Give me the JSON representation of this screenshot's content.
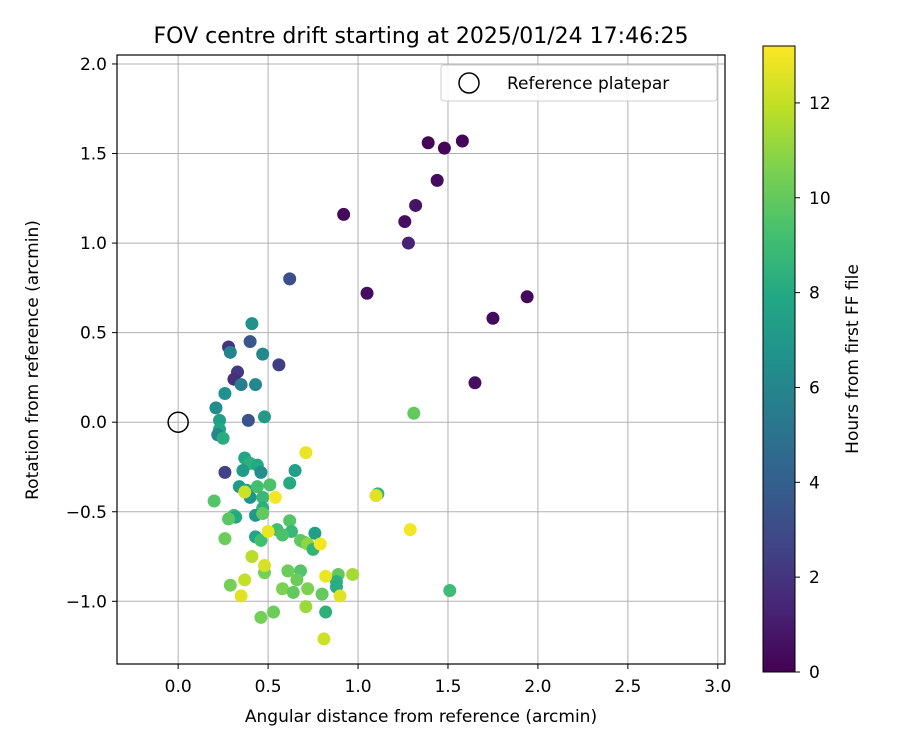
{
  "chart_data": {
    "type": "scatter",
    "title": "FOV centre drift starting at 2025/01/24 17:46:25",
    "xlabel": "Angular distance from reference (arcmin)",
    "ylabel": "Rotation from reference (arcmin)",
    "xlim": [
      -0.34,
      3.04
    ],
    "ylim": [
      -1.35,
      2.05
    ],
    "xticks": [
      0.0,
      0.5,
      1.0,
      1.5,
      2.0,
      2.5,
      3.0
    ],
    "xtick_labels": [
      "0.0",
      "0.5",
      "1.0",
      "1.5",
      "2.0",
      "2.5",
      "3.0"
    ],
    "yticks": [
      -1.0,
      -0.5,
      0.0,
      0.5,
      1.0,
      1.5,
      2.0
    ],
    "ytick_labels": [
      "−1.0",
      "−0.5",
      "0.0",
      "0.5",
      "1.0",
      "1.5",
      "2.0"
    ],
    "grid": true,
    "legend": {
      "placement": "top-right",
      "entries": [
        "Reference platepar"
      ]
    },
    "reference_point": {
      "x": 0.0,
      "y": 0.0,
      "label": "Reference platepar"
    },
    "colorbar": {
      "label": "Hours from first FF file",
      "colormap": "viridis",
      "min": 0,
      "max": 13.2,
      "ticks": [
        0,
        2,
        4,
        6,
        8,
        10,
        12
      ],
      "tick_labels": [
        "0",
        "2",
        "4",
        "6",
        "8",
        "10",
        "12"
      ]
    },
    "points": [
      {
        "x": 1.39,
        "y": 1.56,
        "hours": 0.2
      },
      {
        "x": 1.48,
        "y": 1.53,
        "hours": 0.2
      },
      {
        "x": 1.58,
        "y": 1.57,
        "hours": 0.2
      },
      {
        "x": 1.44,
        "y": 1.35,
        "hours": 0.4
      },
      {
        "x": 0.92,
        "y": 1.16,
        "hours": 0.3
      },
      {
        "x": 1.32,
        "y": 1.21,
        "hours": 0.7
      },
      {
        "x": 1.26,
        "y": 1.12,
        "hours": 0.5
      },
      {
        "x": 1.28,
        "y": 1.0,
        "hours": 1.3
      },
      {
        "x": 1.05,
        "y": 0.72,
        "hours": 0.5
      },
      {
        "x": 1.94,
        "y": 0.7,
        "hours": 0.3
      },
      {
        "x": 1.75,
        "y": 0.58,
        "hours": 0.4
      },
      {
        "x": 1.65,
        "y": 0.22,
        "hours": 0.5
      },
      {
        "x": 0.62,
        "y": 0.8,
        "hours": 3.2
      },
      {
        "x": 0.56,
        "y": 0.32,
        "hours": 2.4
      },
      {
        "x": 0.4,
        "y": 0.45,
        "hours": 3.6
      },
      {
        "x": 0.28,
        "y": 0.42,
        "hours": 2.0
      },
      {
        "x": 0.33,
        "y": 0.28,
        "hours": 2.2
      },
      {
        "x": 0.31,
        "y": 0.24,
        "hours": 1.8
      },
      {
        "x": 0.39,
        "y": 0.01,
        "hours": 3.3
      },
      {
        "x": 0.26,
        "y": -0.28,
        "hours": 2.6
      },
      {
        "x": 0.41,
        "y": 0.55,
        "hours": 6.6
      },
      {
        "x": 0.29,
        "y": 0.39,
        "hours": 5.8
      },
      {
        "x": 0.35,
        "y": 0.21,
        "hours": 5.6
      },
      {
        "x": 0.43,
        "y": 0.21,
        "hours": 6.0
      },
      {
        "x": 0.47,
        "y": 0.38,
        "hours": 6.2
      },
      {
        "x": 0.26,
        "y": 0.16,
        "hours": 6.6
      },
      {
        "x": 0.21,
        "y": 0.08,
        "hours": 6.4
      },
      {
        "x": 0.23,
        "y": 0.01,
        "hours": 7.4
      },
      {
        "x": 0.23,
        "y": -0.04,
        "hours": 7.8
      },
      {
        "x": 0.22,
        "y": -0.07,
        "hours": 5.9
      },
      {
        "x": 0.25,
        "y": -0.09,
        "hours": 8.2
      },
      {
        "x": 0.48,
        "y": 0.03,
        "hours": 7.2
      },
      {
        "x": 0.37,
        "y": -0.2,
        "hours": 7.8
      },
      {
        "x": 0.4,
        "y": -0.23,
        "hours": 8.4
      },
      {
        "x": 0.44,
        "y": -0.24,
        "hours": 8.0
      },
      {
        "x": 0.36,
        "y": -0.27,
        "hours": 7.2
      },
      {
        "x": 0.46,
        "y": -0.28,
        "hours": 6.5
      },
      {
        "x": 0.65,
        "y": -0.27,
        "hours": 7.4
      },
      {
        "x": 0.62,
        "y": -0.34,
        "hours": 8.0
      },
      {
        "x": 0.34,
        "y": -0.36,
        "hours": 7.2
      },
      {
        "x": 0.38,
        "y": -0.38,
        "hours": 7.6
      },
      {
        "x": 0.44,
        "y": -0.36,
        "hours": 9.2
      },
      {
        "x": 0.51,
        "y": -0.35,
        "hours": 9.4
      },
      {
        "x": 0.4,
        "y": -0.42,
        "hours": 6.8
      },
      {
        "x": 0.47,
        "y": -0.42,
        "hours": 8.8
      },
      {
        "x": 0.2,
        "y": -0.44,
        "hours": 9.6
      },
      {
        "x": 0.47,
        "y": -0.48,
        "hours": 8.4
      },
      {
        "x": 0.31,
        "y": -0.52,
        "hours": 9.0
      },
      {
        "x": 0.32,
        "y": -0.53,
        "hours": 8.0
      },
      {
        "x": 0.43,
        "y": -0.52,
        "hours": 7.0
      },
      {
        "x": 0.47,
        "y": -0.51,
        "hours": 10.0
      },
      {
        "x": 0.28,
        "y": -0.54,
        "hours": 9.8
      },
      {
        "x": 0.62,
        "y": -0.55,
        "hours": 9.6
      },
      {
        "x": 0.55,
        "y": -0.6,
        "hours": 9.2
      },
      {
        "x": 0.63,
        "y": -0.61,
        "hours": 8.8
      },
      {
        "x": 0.58,
        "y": -0.63,
        "hours": 9.4
      },
      {
        "x": 0.43,
        "y": -0.64,
        "hours": 7.8
      },
      {
        "x": 0.26,
        "y": -0.65,
        "hours": 10.2
      },
      {
        "x": 0.46,
        "y": -0.66,
        "hours": 9.2
      },
      {
        "x": 0.68,
        "y": -0.66,
        "hours": 10.0
      },
      {
        "x": 0.7,
        "y": -0.67,
        "hours": 9.8
      },
      {
        "x": 0.72,
        "y": -0.68,
        "hours": 11.0
      },
      {
        "x": 0.76,
        "y": -0.62,
        "hours": 7.4
      },
      {
        "x": 0.75,
        "y": -0.71,
        "hours": 8.6
      },
      {
        "x": 1.11,
        "y": -0.4,
        "hours": 8.6
      },
      {
        "x": 1.31,
        "y": 0.05,
        "hours": 10.0
      },
      {
        "x": 1.51,
        "y": -0.94,
        "hours": 9.0
      },
      {
        "x": 0.61,
        "y": -0.83,
        "hours": 10.2
      },
      {
        "x": 0.68,
        "y": -0.83,
        "hours": 9.6
      },
      {
        "x": 0.48,
        "y": -0.84,
        "hours": 10.4
      },
      {
        "x": 0.66,
        "y": -0.88,
        "hours": 10.2
      },
      {
        "x": 0.89,
        "y": -0.85,
        "hours": 10.0
      },
      {
        "x": 0.88,
        "y": -0.89,
        "hours": 8.4
      },
      {
        "x": 0.58,
        "y": -0.93,
        "hours": 10.6
      },
      {
        "x": 0.64,
        "y": -0.95,
        "hours": 10.0
      },
      {
        "x": 0.72,
        "y": -0.93,
        "hours": 10.6
      },
      {
        "x": 0.8,
        "y": -0.96,
        "hours": 10.0
      },
      {
        "x": 0.88,
        "y": -0.92,
        "hours": 8.2
      },
      {
        "x": 0.29,
        "y": -0.91,
        "hours": 10.4
      },
      {
        "x": 0.53,
        "y": -1.06,
        "hours": 10.2
      },
      {
        "x": 0.46,
        "y": -1.09,
        "hours": 10.4
      },
      {
        "x": 0.71,
        "y": -1.03,
        "hours": 11.2
      },
      {
        "x": 0.82,
        "y": -1.06,
        "hours": 8.4
      },
      {
        "x": 0.97,
        "y": -0.85,
        "hours": 11.4
      },
      {
        "x": 0.35,
        "y": -0.97,
        "hours": 12.6
      },
      {
        "x": 0.81,
        "y": -1.21,
        "hours": 12.2
      },
      {
        "x": 0.82,
        "y": -0.86,
        "hours": 12.8
      },
      {
        "x": 0.9,
        "y": -0.97,
        "hours": 12.6
      },
      {
        "x": 0.37,
        "y": -0.88,
        "hours": 12.0
      },
      {
        "x": 0.41,
        "y": -0.75,
        "hours": 11.8
      },
      {
        "x": 0.48,
        "y": -0.8,
        "hours": 12.4
      },
      {
        "x": 0.79,
        "y": -0.68,
        "hours": 13.0
      },
      {
        "x": 0.5,
        "y": -0.61,
        "hours": 12.8
      },
      {
        "x": 0.54,
        "y": -0.42,
        "hours": 13.0
      },
      {
        "x": 0.37,
        "y": -0.39,
        "hours": 12.2
      },
      {
        "x": 0.71,
        "y": -0.17,
        "hours": 12.8
      },
      {
        "x": 1.1,
        "y": -0.41,
        "hours": 12.6
      },
      {
        "x": 1.29,
        "y": -0.6,
        "hours": 13.0
      }
    ]
  }
}
